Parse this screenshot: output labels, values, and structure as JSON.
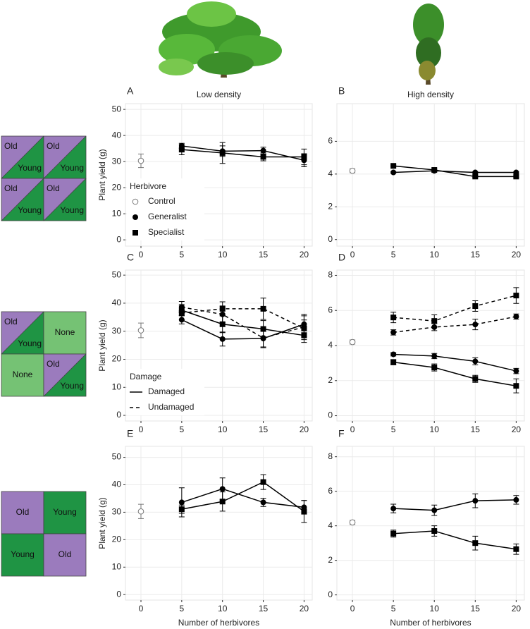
{
  "chart_data": [
    {
      "type": "line",
      "label": "A",
      "title": "Low density",
      "ylabel": "Plant yield (g)",
      "xlim": [
        -1.9,
        21
      ],
      "xticks": [
        0,
        5,
        10,
        15,
        20
      ],
      "ylim": [
        -2.4,
        52.2
      ],
      "yticks": [
        0,
        10,
        20,
        30,
        40,
        50
      ],
      "grid": true,
      "legend": {
        "title": "Herbivore",
        "corner": "lower-left",
        "entries": [
          {
            "label": "Control",
            "marker": "open-circle"
          },
          {
            "label": "Generalist",
            "marker": "circle"
          },
          {
            "label": "Specialist",
            "marker": "square"
          }
        ]
      },
      "series": [
        {
          "marker": "open-circle",
          "color": "#777777",
          "dash": false,
          "x": [
            0
          ],
          "values": [
            30.3
          ],
          "errors": [
            2.6
          ]
        },
        {
          "marker": "circle",
          "color": "#000000",
          "dash": false,
          "x": [
            5,
            10,
            15,
            20
          ],
          "values": [
            36.0,
            34.0,
            34.2,
            30.5
          ],
          "errors": [
            1.0,
            2.0,
            1.3,
            2.5
          ]
        },
        {
          "marker": "square",
          "color": "#000000",
          "dash": false,
          "x": [
            5,
            10,
            15,
            20
          ],
          "values": [
            34.6,
            33.3,
            31.8,
            31.8
          ],
          "errors": [
            2.0,
            4.0,
            1.5,
            3.0
          ]
        }
      ]
    },
    {
      "type": "line",
      "label": "B",
      "title": "High density",
      "xlim": [
        -1.9,
        21
      ],
      "xticks": [
        0,
        5,
        10,
        15,
        20
      ],
      "ylim": [
        -0.4,
        8.3
      ],
      "yticks": [
        0,
        2,
        4,
        6
      ],
      "grid": true,
      "series": [
        {
          "marker": "open-circle",
          "color": "#777777",
          "dash": false,
          "x": [
            0
          ],
          "values": [
            4.2
          ],
          "errors": [
            0.12
          ]
        },
        {
          "marker": "circle",
          "color": "#000000",
          "dash": false,
          "x": [
            5,
            10,
            15,
            20
          ],
          "values": [
            4.1,
            4.2,
            4.1,
            4.1
          ],
          "errors": [
            0.05,
            0.05,
            0.05,
            0.05
          ]
        },
        {
          "marker": "square",
          "color": "#000000",
          "dash": false,
          "x": [
            5,
            10,
            15,
            20
          ],
          "values": [
            4.5,
            4.25,
            3.85,
            3.85
          ],
          "errors": [
            0.05,
            0.05,
            0.05,
            0.05
          ]
        }
      ]
    },
    {
      "type": "line",
      "label": "C",
      "ylabel": "Plant yield (g)",
      "xlim": [
        -1.9,
        21
      ],
      "xticks": [
        0,
        5,
        10,
        15,
        20
      ],
      "ylim": [
        -2,
        51.8
      ],
      "yticks": [
        0,
        10,
        20,
        30,
        40,
        50
      ],
      "grid": true,
      "legend": {
        "title": "Damage",
        "corner": "lower-left",
        "entries": [
          {
            "label": "Damaged",
            "dash": false
          },
          {
            "label": "Undamaged",
            "dash": true
          }
        ]
      },
      "series": [
        {
          "marker": "open-circle",
          "color": "#777777",
          "dash": false,
          "x": [
            0
          ],
          "values": [
            30.3
          ],
          "errors": [
            2.6
          ]
        },
        {
          "marker": "circle",
          "color": "#000000",
          "dash": false,
          "x": [
            5,
            10,
            15,
            20
          ],
          "values": [
            34.1,
            27.2,
            27.4,
            32.5
          ],
          "errors": [
            1.5,
            2.5,
            3.0,
            3.0
          ]
        },
        {
          "marker": "circle",
          "color": "#000000",
          "dash": true,
          "x": [
            5,
            10,
            15,
            20
          ],
          "values": [
            38.6,
            36.0,
            27.6,
            31.5
          ],
          "errors": [
            2.0,
            3.0,
            3.5,
            4.5
          ]
        },
        {
          "marker": "square",
          "color": "#000000",
          "dash": false,
          "x": [
            5,
            10,
            15,
            20
          ],
          "values": [
            37.5,
            32.5,
            30.8,
            28.5
          ],
          "errors": [
            2.0,
            3.0,
            3.0,
            2.5
          ]
        },
        {
          "marker": "square",
          "color": "#000000",
          "dash": true,
          "x": [
            5,
            10,
            15,
            20
          ],
          "values": [
            36.5,
            38.0,
            38.0,
            31.0
          ],
          "errors": [
            2.5,
            2.5,
            3.8,
            3.0
          ]
        }
      ]
    },
    {
      "type": "line",
      "label": "D",
      "xlim": [
        -1.9,
        21
      ],
      "xticks": [
        0,
        5,
        10,
        15,
        20
      ],
      "ylim": [
        -0.3,
        8.3
      ],
      "yticks": [
        0,
        2,
        4,
        6,
        8
      ],
      "grid": true,
      "series": [
        {
          "marker": "open-circle",
          "color": "#777777",
          "dash": false,
          "x": [
            0
          ],
          "values": [
            4.2
          ],
          "errors": [
            0.12
          ]
        },
        {
          "marker": "circle",
          "color": "#000000",
          "dash": false,
          "x": [
            5,
            10,
            15,
            20
          ],
          "values": [
            3.5,
            3.4,
            3.1,
            2.55
          ],
          "errors": [
            0.1,
            0.15,
            0.2,
            0.15
          ]
        },
        {
          "marker": "circle",
          "color": "#000000",
          "dash": true,
          "x": [
            5,
            10,
            15,
            20
          ],
          "values": [
            4.75,
            5.05,
            5.2,
            5.65
          ],
          "errors": [
            0.15,
            0.2,
            0.3,
            0.15
          ]
        },
        {
          "marker": "square",
          "color": "#000000",
          "dash": false,
          "x": [
            5,
            10,
            15,
            20
          ],
          "values": [
            3.05,
            2.75,
            2.1,
            1.7
          ],
          "errors": [
            0.15,
            0.2,
            0.2,
            0.4
          ]
        },
        {
          "marker": "square",
          "color": "#000000",
          "dash": true,
          "x": [
            5,
            10,
            15,
            20
          ],
          "values": [
            5.6,
            5.4,
            6.25,
            6.85
          ],
          "errors": [
            0.3,
            0.35,
            0.3,
            0.45
          ]
        }
      ]
    },
    {
      "type": "line",
      "label": "E",
      "ylabel": "Plant yield (g)",
      "xlabel": "Number of herbivores",
      "xlim": [
        -1.9,
        21
      ],
      "xticks": [
        0,
        5,
        10,
        15,
        20
      ],
      "ylim": [
        -2,
        54
      ],
      "yticks": [
        0,
        10,
        20,
        30,
        40,
        50
      ],
      "grid": true,
      "series": [
        {
          "marker": "open-circle",
          "color": "#777777",
          "dash": false,
          "x": [
            0
          ],
          "values": [
            30.3
          ],
          "errors": [
            2.6
          ]
        },
        {
          "marker": "circle",
          "color": "#000000",
          "dash": false,
          "x": [
            5,
            10,
            15,
            20
          ],
          "values": [
            33.6,
            38.5,
            33.6,
            31.8
          ],
          "errors": [
            5.3,
            4.0,
            1.5,
            2.5
          ]
        },
        {
          "marker": "square",
          "color": "#000000",
          "dash": false,
          "x": [
            5,
            10,
            15,
            20
          ],
          "values": [
            31.1,
            33.9,
            41.0,
            30.3
          ],
          "errors": [
            1.5,
            3.5,
            2.7,
            4.0
          ]
        }
      ]
    },
    {
      "type": "line",
      "label": "F",
      "xlabel": "Number of herbivores",
      "xlim": [
        -1.9,
        21
      ],
      "xticks": [
        0,
        5,
        10,
        15,
        20
      ],
      "ylim": [
        -0.3,
        8.6
      ],
      "yticks": [
        0,
        2,
        4,
        6,
        8
      ],
      "grid": true,
      "series": [
        {
          "marker": "open-circle",
          "color": "#777777",
          "dash": false,
          "x": [
            0
          ],
          "values": [
            4.2
          ],
          "errors": [
            0.12
          ]
        },
        {
          "marker": "circle",
          "color": "#000000",
          "dash": false,
          "x": [
            5,
            10,
            15,
            20
          ],
          "values": [
            5.0,
            4.9,
            5.45,
            5.5
          ],
          "errors": [
            0.25,
            0.3,
            0.4,
            0.25
          ]
        },
        {
          "marker": "square",
          "color": "#000000",
          "dash": false,
          "x": [
            5,
            10,
            15,
            20
          ],
          "values": [
            3.55,
            3.7,
            3.0,
            2.65
          ],
          "errors": [
            0.2,
            0.3,
            0.4,
            0.3
          ]
        }
      ]
    }
  ],
  "diagrams": [
    {
      "cells": [
        {
          "top": "Old",
          "bottom": "Young"
        },
        {
          "top": "Old",
          "bottom": "Young"
        },
        {
          "top": "Old",
          "bottom": "Young"
        },
        {
          "top": "Old",
          "bottom": "Young"
        }
      ]
    },
    {
      "cells": [
        {
          "top": "Old",
          "bottom": "Young"
        },
        {
          "label": "None"
        },
        {
          "label": "None"
        },
        {
          "top": "Old",
          "bottom": "Young"
        }
      ]
    },
    {
      "cells": [
        {
          "label": "Old",
          "fill": "old"
        },
        {
          "label": "Young",
          "fill": "young"
        },
        {
          "label": "Young",
          "fill": "young"
        },
        {
          "label": "Old",
          "fill": "old"
        }
      ]
    }
  ]
}
